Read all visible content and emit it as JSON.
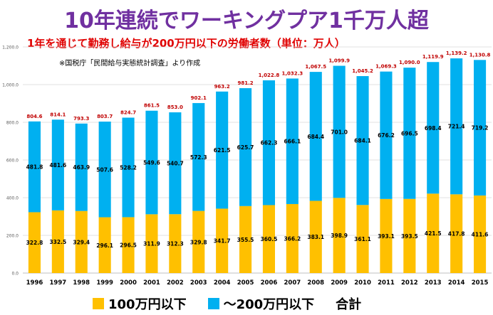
{
  "title": "10年連続でワーキングプア1千万人超",
  "subtitle": "1年を通じて勤務し給与が200万円以下の労働者数（単位：万人）",
  "note": "※国税庁「民間給与実態統計調査」より作成",
  "colors": {
    "low": "#ffc000",
    "mid": "#00b0f0",
    "total_label": "#c00000",
    "title": "#7030a0"
  },
  "legend": {
    "low": "100万円以下",
    "mid": "～200万円以下",
    "total": "合計"
  },
  "chart_data": {
    "type": "bar",
    "stacked": true,
    "categories": [
      "1996",
      "1997",
      "1998",
      "1999",
      "2000",
      "2001",
      "2002",
      "2003",
      "2004",
      "2005",
      "2006",
      "2007",
      "2008",
      "2009",
      "2010",
      "2011",
      "2012",
      "2013",
      "2014",
      "2015"
    ],
    "series": [
      {
        "name": "100万円以下",
        "values": [
          322.8,
          332.5,
          329.4,
          296.1,
          296.5,
          311.9,
          312.3,
          329.8,
          341.7,
          355.5,
          360.5,
          366.2,
          383.1,
          398.9,
          361.1,
          393.1,
          393.5,
          421.5,
          417.8,
          411.6
        ]
      },
      {
        "name": "～200万円以下",
        "values": [
          481.8,
          481.6,
          463.9,
          507.6,
          528.2,
          549.6,
          540.7,
          572.3,
          621.5,
          625.7,
          662.3,
          666.1,
          684.4,
          701.0,
          684.1,
          676.2,
          696.5,
          698.4,
          721.4,
          719.2
        ]
      }
    ],
    "totals": [
      "804.6",
      "814.1",
      "793.3",
      "803.7",
      "824.7",
      "861.5",
      "853.0",
      "902.1",
      "963.2",
      "981.2",
      "1,022.8",
      "1,032.3",
      "1,067.5",
      "1,099.9",
      "1,045.2",
      "1,069.3",
      "1,090.0",
      "1,119.9",
      "1,139.2",
      "1,130.8"
    ],
    "low_labels": [
      "322.8",
      "332.5",
      "329.4",
      "296.1",
      "296.5",
      "311.9",
      "312.3",
      "329.8",
      "341.7",
      "355.5",
      "360.5",
      "366.2",
      "383.1",
      "398.9",
      "361.1",
      "393.1",
      "393.5",
      "421.5",
      "417.8",
      "411.6"
    ],
    "mid_labels": [
      "481.8",
      "481.6",
      "463.9",
      "507.6",
      "528.2",
      "549.6",
      "540.7",
      "572.3",
      "621.5",
      "625.7",
      "662.3",
      "666.1",
      "684.4",
      "701.0",
      "684.1",
      "676.2",
      "696.5",
      "698.4",
      "721.4",
      "719.2"
    ],
    "y_ticks": [
      0,
      200,
      400,
      600,
      800,
      1000,
      1200
    ],
    "y_tick_labels": [
      "0.0",
      "200.0",
      "400.0",
      "600.0",
      "800.0",
      "1,000.0",
      "1,200.0"
    ],
    "ylim": [
      0,
      1200
    ],
    "grid": true
  }
}
